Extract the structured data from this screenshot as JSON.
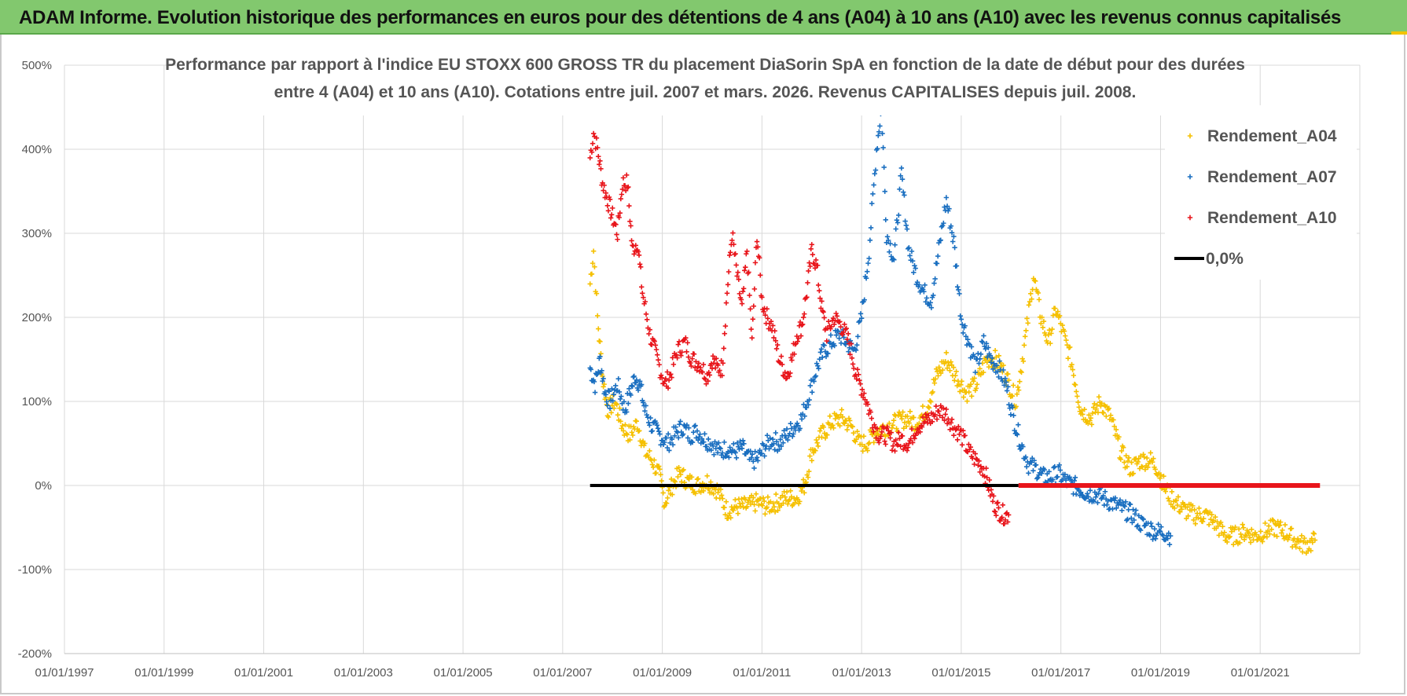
{
  "header": {
    "title": "ADAM Informe. Evolution historique des performances en euros pour des détentions de 4 ans (A04) à 10 ans (A10) avec les revenus connus capitalisés"
  },
  "chart_data": {
    "type": "scatter",
    "title_lines": [
      "Performance par rapport à l'indice EU STOXX 600 GROSS TR  du placement DiaSorin SpA en fonction de la date de début pour des durées",
      "entre 4 (A04) et 10 ans (A10). Cotations entre juil. 2007 et mars. 2026. Revenus CAPITALISES depuis juil. 2008."
    ],
    "ylim": [
      -200,
      500
    ],
    "xlim": [
      1997.0,
      2023.0
    ],
    "y_ticks": [
      {
        "value": 500,
        "label": "500%"
      },
      {
        "value": 400,
        "label": "400%"
      },
      {
        "value": 300,
        "label": "300%"
      },
      {
        "value": 200,
        "label": "200%"
      },
      {
        "value": 100,
        "label": "100%"
      },
      {
        "value": 0,
        "label": "0%"
      },
      {
        "value": -100,
        "label": "-100%"
      },
      {
        "value": -200,
        "label": "-200%"
      }
    ],
    "x_ticks": [
      {
        "value": 1997,
        "label": "01/01/1997"
      },
      {
        "value": 1999,
        "label": "01/01/1999"
      },
      {
        "value": 2001,
        "label": "01/01/2001"
      },
      {
        "value": 2003,
        "label": "01/01/2003"
      },
      {
        "value": 2005,
        "label": "01/01/2005"
      },
      {
        "value": 2007,
        "label": "01/01/2007"
      },
      {
        "value": 2009,
        "label": "01/01/2009"
      },
      {
        "value": 2011,
        "label": "01/01/2011"
      },
      {
        "value": 2013,
        "label": "01/01/2013"
      },
      {
        "value": 2015,
        "label": "01/01/2015"
      },
      {
        "value": 2017,
        "label": "01/01/2017"
      },
      {
        "value": 2019,
        "label": "01/01/2019"
      },
      {
        "value": 2021,
        "label": "01/01/2021"
      }
    ],
    "legend_position": "top-right",
    "series": [
      {
        "name": "Rendement_A04",
        "legend_label": "Rendement_A04",
        "color": "#f5c000",
        "marker": "plus",
        "points": [
          [
            2007.55,
            240
          ],
          [
            2007.62,
            280
          ],
          [
            2007.7,
            200
          ],
          [
            2007.8,
            130
          ],
          [
            2007.9,
            90
          ],
          [
            2008.05,
            100
          ],
          [
            2008.2,
            70
          ],
          [
            2008.35,
            60
          ],
          [
            2008.5,
            75
          ],
          [
            2008.65,
            40
          ],
          [
            2008.8,
            30
          ],
          [
            2008.95,
            10
          ],
          [
            2009.05,
            -20
          ],
          [
            2009.2,
            0
          ],
          [
            2009.35,
            15
          ],
          [
            2009.5,
            5
          ],
          [
            2009.7,
            0
          ],
          [
            2009.9,
            5
          ],
          [
            2010.1,
            -5
          ],
          [
            2010.3,
            -30
          ],
          [
            2010.5,
            -25
          ],
          [
            2010.7,
            -25
          ],
          [
            2010.9,
            -20
          ],
          [
            2011.1,
            -25
          ],
          [
            2011.3,
            -20
          ],
          [
            2011.5,
            -15
          ],
          [
            2011.7,
            -15
          ],
          [
            2011.85,
            0
          ],
          [
            2012.0,
            40
          ],
          [
            2012.2,
            60
          ],
          [
            2012.4,
            75
          ],
          [
            2012.6,
            80
          ],
          [
            2012.8,
            70
          ],
          [
            2012.95,
            50
          ],
          [
            2013.1,
            50
          ],
          [
            2013.3,
            65
          ],
          [
            2013.5,
            70
          ],
          [
            2013.7,
            75
          ],
          [
            2013.9,
            80
          ],
          [
            2014.1,
            75
          ],
          [
            2014.3,
            90
          ],
          [
            2014.5,
            130
          ],
          [
            2014.7,
            150
          ],
          [
            2014.9,
            130
          ],
          [
            2015.1,
            110
          ],
          [
            2015.3,
            120
          ],
          [
            2015.5,
            150
          ],
          [
            2015.7,
            150
          ],
          [
            2015.9,
            130
          ],
          [
            2016.1,
            100
          ],
          [
            2016.3,
            180
          ],
          [
            2016.45,
            250
          ],
          [
            2016.6,
            200
          ],
          [
            2016.75,
            170
          ],
          [
            2016.9,
            210
          ],
          [
            2017.05,
            180
          ],
          [
            2017.2,
            150
          ],
          [
            2017.4,
            90
          ],
          [
            2017.6,
            80
          ],
          [
            2017.8,
            100
          ],
          [
            2018.0,
            80
          ],
          [
            2018.2,
            40
          ],
          [
            2018.4,
            20
          ],
          [
            2018.6,
            30
          ],
          [
            2018.8,
            30
          ],
          [
            2018.95,
            20
          ],
          [
            2019.1,
            -5
          ],
          [
            2019.3,
            -20
          ],
          [
            2019.5,
            -30
          ],
          [
            2019.7,
            -35
          ],
          [
            2019.9,
            -35
          ],
          [
            2020.1,
            -45
          ],
          [
            2020.3,
            -60
          ],
          [
            2020.5,
            -60
          ],
          [
            2020.7,
            -55
          ],
          [
            2020.9,
            -60
          ],
          [
            2021.1,
            -55
          ],
          [
            2021.3,
            -50
          ],
          [
            2021.5,
            -55
          ],
          [
            2021.7,
            -65
          ],
          [
            2021.85,
            -70
          ],
          [
            2022.0,
            -70
          ],
          [
            2022.1,
            -65
          ]
        ]
      },
      {
        "name": "Rendement_A07",
        "legend_label": "Rendement_A07",
        "color": "#1a6fc0",
        "marker": "plus",
        "points": [
          [
            2007.55,
            140
          ],
          [
            2007.65,
            120
          ],
          [
            2007.75,
            150
          ],
          [
            2007.85,
            110
          ],
          [
            2007.95,
            100
          ],
          [
            2008.1,
            120
          ],
          [
            2008.25,
            90
          ],
          [
            2008.35,
            110
          ],
          [
            2008.45,
            130
          ],
          [
            2008.55,
            120
          ],
          [
            2008.65,
            90
          ],
          [
            2008.8,
            70
          ],
          [
            2008.95,
            60
          ],
          [
            2009.1,
            50
          ],
          [
            2009.25,
            60
          ],
          [
            2009.4,
            70
          ],
          [
            2009.55,
            60
          ],
          [
            2009.7,
            65
          ],
          [
            2009.85,
            55
          ],
          [
            2010.0,
            50
          ],
          [
            2010.15,
            40
          ],
          [
            2010.3,
            45
          ],
          [
            2010.45,
            40
          ],
          [
            2010.6,
            45
          ],
          [
            2010.75,
            30
          ],
          [
            2010.9,
            30
          ],
          [
            2011.05,
            45
          ],
          [
            2011.2,
            55
          ],
          [
            2011.35,
            50
          ],
          [
            2011.5,
            60
          ],
          [
            2011.65,
            70
          ],
          [
            2011.8,
            80
          ],
          [
            2011.95,
            110
          ],
          [
            2012.1,
            140
          ],
          [
            2012.25,
            160
          ],
          [
            2012.4,
            170
          ],
          [
            2012.55,
            180
          ],
          [
            2012.7,
            170
          ],
          [
            2012.85,
            160
          ],
          [
            2013.0,
            200
          ],
          [
            2013.15,
            280
          ],
          [
            2013.3,
            400
          ],
          [
            2013.4,
            450
          ],
          [
            2013.5,
            300
          ],
          [
            2013.65,
            270
          ],
          [
            2013.8,
            370
          ],
          [
            2013.95,
            280
          ],
          [
            2014.1,
            250
          ],
          [
            2014.25,
            230
          ],
          [
            2014.4,
            220
          ],
          [
            2014.55,
            280
          ],
          [
            2014.7,
            340
          ],
          [
            2014.85,
            290
          ],
          [
            2015.0,
            200
          ],
          [
            2015.15,
            170
          ],
          [
            2015.3,
            140
          ],
          [
            2015.45,
            170
          ],
          [
            2015.6,
            150
          ],
          [
            2015.75,
            140
          ],
          [
            2015.9,
            120
          ],
          [
            2016.05,
            80
          ],
          [
            2016.2,
            50
          ],
          [
            2016.35,
            25
          ],
          [
            2016.5,
            20
          ],
          [
            2016.65,
            10
          ],
          [
            2016.8,
            10
          ],
          [
            2016.95,
            15
          ],
          [
            2017.1,
            5
          ],
          [
            2017.25,
            0
          ],
          [
            2017.4,
            -5
          ],
          [
            2017.55,
            -10
          ],
          [
            2017.7,
            -10
          ],
          [
            2017.85,
            -15
          ],
          [
            2018.0,
            -20
          ],
          [
            2018.15,
            -25
          ],
          [
            2018.3,
            -30
          ],
          [
            2018.45,
            -35
          ],
          [
            2018.6,
            -45
          ],
          [
            2018.75,
            -50
          ],
          [
            2018.9,
            -55
          ],
          [
            2019.05,
            -55
          ],
          [
            2019.2,
            -60
          ]
        ]
      },
      {
        "name": "Rendement_A10",
        "legend_label": "Rendement_A10",
        "color": "#e8151b",
        "marker": "plus",
        "points": [
          [
            2007.55,
            390
          ],
          [
            2007.62,
            420
          ],
          [
            2007.7,
            400
          ],
          [
            2007.8,
            360
          ],
          [
            2007.9,
            340
          ],
          [
            2008.0,
            320
          ],
          [
            2008.1,
            300
          ],
          [
            2008.2,
            360
          ],
          [
            2008.3,
            360
          ],
          [
            2008.4,
            280
          ],
          [
            2008.5,
            290
          ],
          [
            2008.6,
            230
          ],
          [
            2008.75,
            180
          ],
          [
            2008.9,
            150
          ],
          [
            2009.05,
            120
          ],
          [
            2009.15,
            130
          ],
          [
            2009.3,
            160
          ],
          [
            2009.45,
            170
          ],
          [
            2009.6,
            150
          ],
          [
            2009.75,
            145
          ],
          [
            2009.9,
            130
          ],
          [
            2010.0,
            150
          ],
          [
            2010.1,
            140
          ],
          [
            2010.2,
            140
          ],
          [
            2010.3,
            230
          ],
          [
            2010.4,
            300
          ],
          [
            2010.5,
            250
          ],
          [
            2010.6,
            210
          ],
          [
            2010.7,
            280
          ],
          [
            2010.8,
            170
          ],
          [
            2010.9,
            300
          ],
          [
            2011.0,
            220
          ],
          [
            2011.1,
            200
          ],
          [
            2011.2,
            190
          ],
          [
            2011.35,
            150
          ],
          [
            2011.5,
            130
          ],
          [
            2011.6,
            150
          ],
          [
            2011.7,
            180
          ],
          [
            2011.8,
            190
          ],
          [
            2011.9,
            230
          ],
          [
            2012.0,
            280
          ],
          [
            2012.1,
            260
          ],
          [
            2012.2,
            210
          ],
          [
            2012.3,
            180
          ],
          [
            2012.45,
            200
          ],
          [
            2012.6,
            190
          ],
          [
            2012.75,
            170
          ],
          [
            2012.9,
            130
          ],
          [
            2013.05,
            110
          ],
          [
            2013.2,
            80
          ],
          [
            2013.35,
            60
          ],
          [
            2013.5,
            60
          ],
          [
            2013.65,
            50
          ],
          [
            2013.8,
            55
          ],
          [
            2013.95,
            50
          ],
          [
            2014.1,
            70
          ],
          [
            2014.25,
            75
          ],
          [
            2014.4,
            80
          ],
          [
            2014.55,
            90
          ],
          [
            2014.7,
            85
          ],
          [
            2014.85,
            70
          ],
          [
            2015.0,
            60
          ],
          [
            2015.15,
            40
          ],
          [
            2015.3,
            30
          ],
          [
            2015.45,
            20
          ],
          [
            2015.55,
            0
          ],
          [
            2015.65,
            -20
          ],
          [
            2015.75,
            -30
          ],
          [
            2015.85,
            -35
          ],
          [
            2015.95,
            -35
          ]
        ]
      },
      {
        "name": "0,0%",
        "legend_label": "0,0%",
        "color": "#000000",
        "marker": "line",
        "points": [
          [
            2007.55,
            0
          ],
          [
            2016.15,
            0
          ]
        ]
      },
      {
        "name": "Rendement_A10 (zero)",
        "legend_label": "",
        "color": "#e8151b",
        "marker": "thick-line",
        "points": [
          [
            2016.15,
            0
          ],
          [
            2022.2,
            0
          ]
        ]
      }
    ]
  }
}
